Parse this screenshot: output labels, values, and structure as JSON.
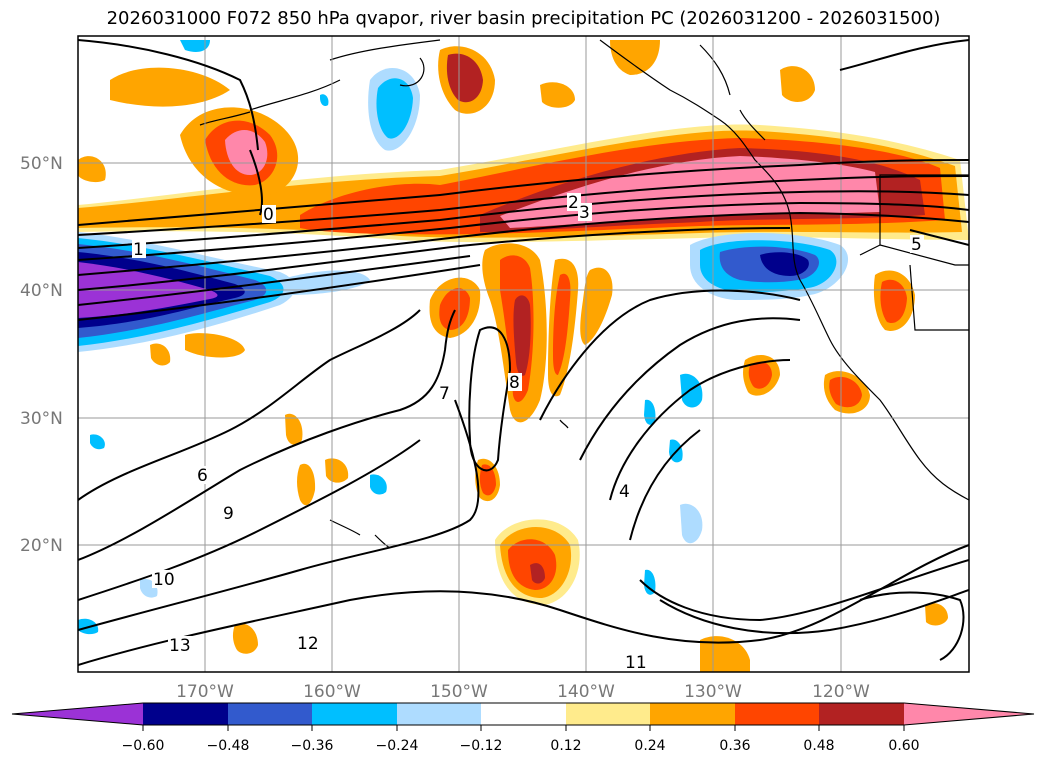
{
  "title": "2026031000 F072 850 hPa qvapor, river basin precipitation PC (2026031200 - 2026031500)",
  "colors": {
    "neg": [
      "#9b32d6",
      "#00008c",
      "#325acd",
      "#00bfff",
      "#aedcff"
    ],
    "neutral": "#ffffff",
    "pos": [
      "#ffeb8c",
      "#ffa500",
      "#ff4500",
      "#b22222",
      "#ff87aa"
    ]
  },
  "colorbar": {
    "ticks": [
      "−0.60",
      "−0.48",
      "−0.36",
      "−0.24",
      "−0.12",
      "0.12",
      "0.24",
      "0.36",
      "0.48",
      "0.60"
    ]
  },
  "axes": {
    "lat_labels": [
      "50°N",
      "40°N",
      "30°N",
      "20°N"
    ],
    "lon_labels": [
      "170°W",
      "160°W",
      "150°W",
      "140°W",
      "130°W",
      "120°W"
    ],
    "lat_values": [
      50,
      40,
      30,
      20
    ],
    "lon_values": [
      -170,
      -160,
      -150,
      -140,
      -130,
      -120
    ],
    "lat_range": [
      10,
      60
    ],
    "lon_range": [
      -180,
      -110
    ]
  },
  "contour_labels": [
    "0",
    "1",
    "2",
    "3",
    "4",
    "5",
    "6",
    "7",
    "8",
    "9",
    "10",
    "11",
    "12",
    "13"
  ]
}
